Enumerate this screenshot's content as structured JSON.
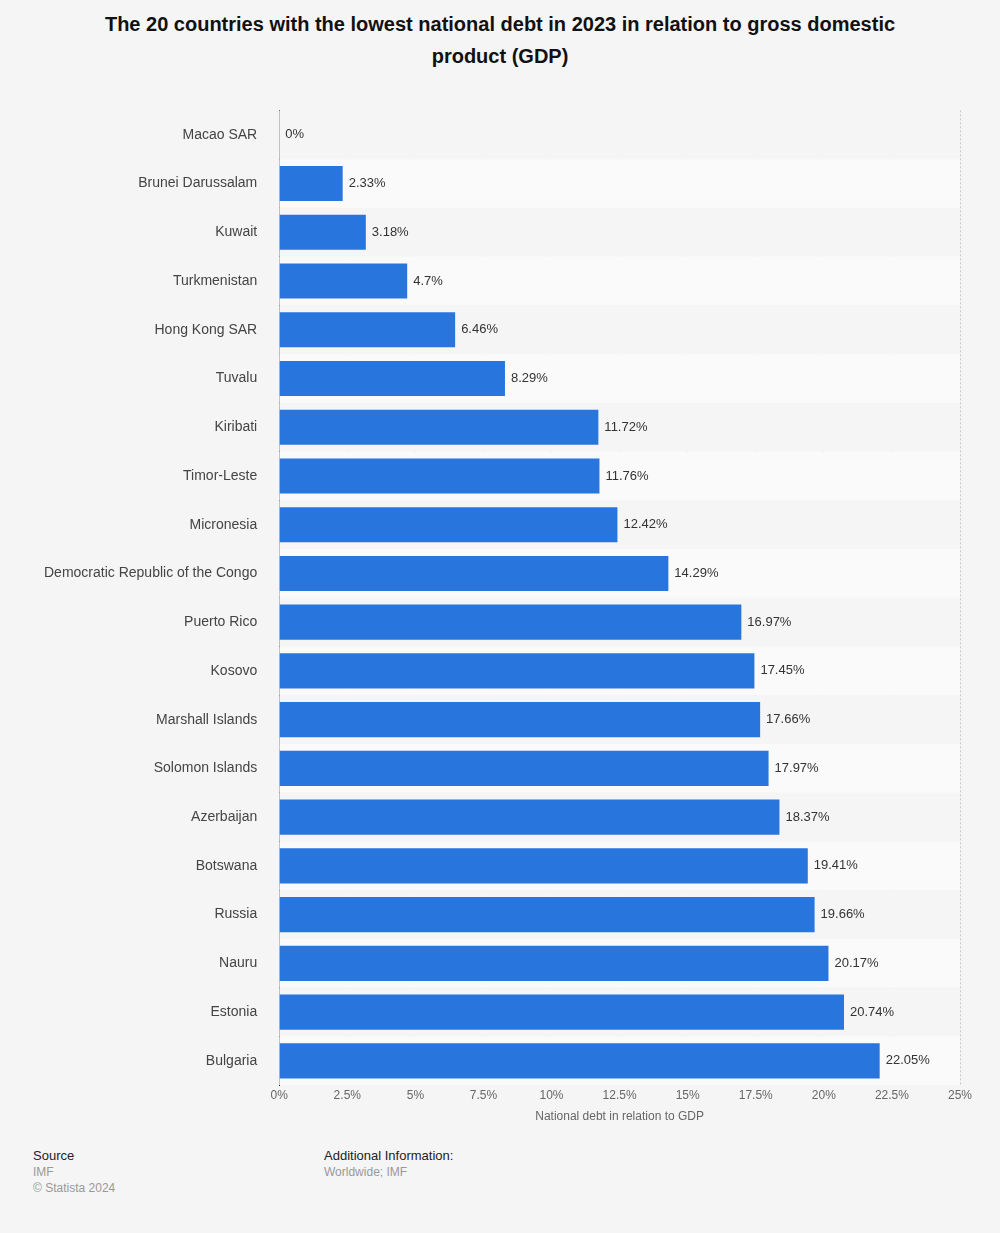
{
  "chart_data": {
    "type": "bar",
    "title": "The 20 countries with the lowest national debt in 2023 in relation to gross domestic product (GDP)",
    "x_label": "National debt in relation to GDP",
    "orientation": "horizontal",
    "categories": [
      "Macao SAR",
      "Brunei Darussalam",
      "Kuwait",
      "Turkmenistan",
      "Hong Kong SAR",
      "Tuvalu",
      "Kiribati",
      "Timor-Leste",
      "Micronesia",
      "Democratic Republic of the Congo",
      "Puerto Rico",
      "Kosovo",
      "Marshall Islands",
      "Solomon Islands",
      "Azerbaijan",
      "Botswana",
      "Russia",
      "Nauru",
      "Estonia",
      "Bulgaria"
    ],
    "values": [
      0,
      2.33,
      3.18,
      4.7,
      6.46,
      8.29,
      11.72,
      11.76,
      12.42,
      14.29,
      16.97,
      17.45,
      17.66,
      17.97,
      18.37,
      19.41,
      19.66,
      20.17,
      20.74,
      22.05
    ],
    "value_labels": [
      "0%",
      "2.33%",
      "3.18%",
      "4.7%",
      "6.46%",
      "8.29%",
      "11.72%",
      "11.76%",
      "12.42%",
      "14.29%",
      "16.97%",
      "17.45%",
      "17.66%",
      "17.97%",
      "18.37%",
      "19.41%",
      "19.66%",
      "20.17%",
      "20.74%",
      "22.05%"
    ],
    "data_labels": true,
    "color": "#2876dd",
    "xlim": [
      0,
      25
    ],
    "xticks": [
      {
        "value": 0,
        "label": "0%"
      },
      {
        "value": 2.5,
        "label": "2.5%"
      },
      {
        "value": 5,
        "label": "5%"
      },
      {
        "value": 7.5,
        "label": "7.5%"
      },
      {
        "value": 10,
        "label": "10%"
      },
      {
        "value": 12.5,
        "label": "12.5%"
      },
      {
        "value": 15,
        "label": "15%"
      },
      {
        "value": 17.5,
        "label": "17.5%"
      },
      {
        "value": 20,
        "label": "20%"
      },
      {
        "value": 22.5,
        "label": "22.5%"
      },
      {
        "value": 25,
        "label": "25%"
      }
    ],
    "grid": true,
    "footer": {
      "source_title": "Source",
      "source": [
        "IMF",
        "© Statista 2024"
      ],
      "info_title": "Additional Information:",
      "info": "Worldwide; IMF"
    }
  }
}
